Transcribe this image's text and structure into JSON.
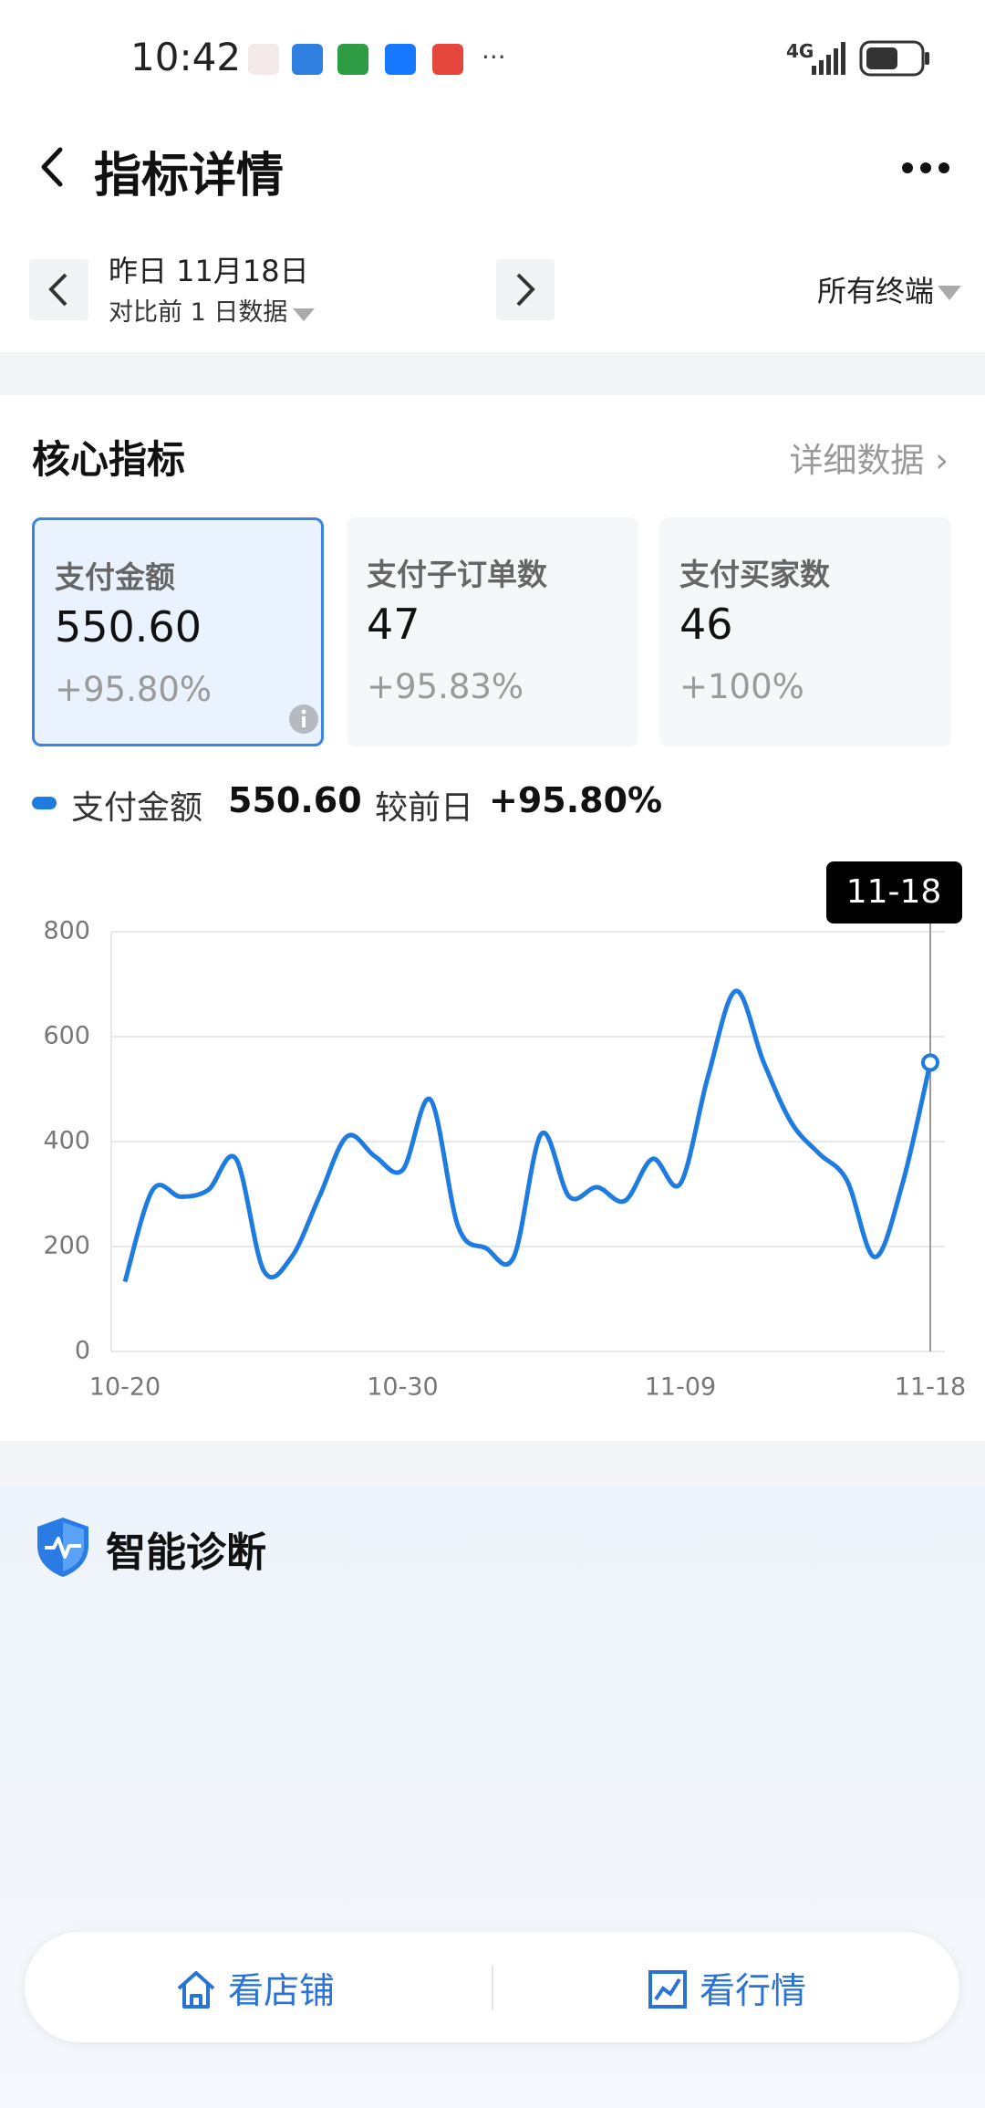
{
  "status_bar": {
    "time": "10:42",
    "network": "4G"
  },
  "header": {
    "title": "指标详情"
  },
  "date_nav": {
    "date": "昨日 11月18日",
    "compare": "对比前 1 日数据",
    "terminal": "所有终端"
  },
  "core_metrics": {
    "title": "核心指标",
    "detail_link": "详细数据",
    "cards": [
      {
        "label": "支付金额",
        "value": "550.60",
        "change": "+95.80%"
      },
      {
        "label": "支付子订单数",
        "value": "47",
        "change": "+95.83%"
      },
      {
        "label": "支付买家数",
        "value": "46",
        "change": "+100%"
      }
    ]
  },
  "legend": {
    "compare_label": "较前日"
  },
  "chart_data": {
    "type": "line",
    "categories": [
      "10-20",
      null,
      null,
      null,
      null,
      null,
      null,
      null,
      null,
      null,
      "10-30",
      null,
      null,
      null,
      null,
      null,
      null,
      null,
      null,
      null,
      "11-09",
      null,
      null,
      null,
      null,
      null,
      null,
      null,
      null,
      "11-18"
    ],
    "series": [
      {
        "name": "支付金额",
        "color": "#1e7be0",
        "values": [
          133,
          308,
          295,
          308,
          367,
          154,
          180,
          295,
          410,
          372,
          346,
          480,
          238,
          197,
          180,
          415,
          295,
          313,
          287,
          367,
          320,
          525,
          687,
          551,
          436,
          377,
          326,
          180,
          320,
          550.6
        ]
      }
    ],
    "ylim": [
      0,
      800
    ],
    "yticks": [
      0,
      200,
      400,
      600,
      800
    ],
    "grid": true
  },
  "diagnosis": {
    "title": "智能诊断"
  },
  "bottom_bar": {
    "shop": "看店铺",
    "market": "看行情"
  }
}
